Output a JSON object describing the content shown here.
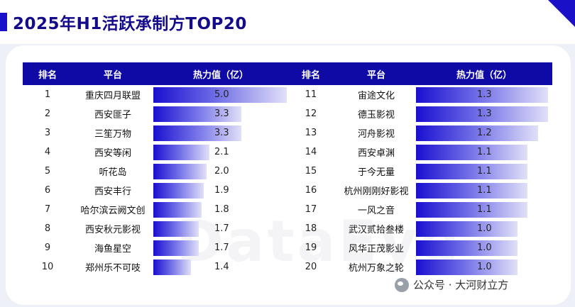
{
  "title": "2025年H1活跃承制方TOP20",
  "watermark_text": "公众号 · 大河财立方",
  "background_watermark": "DataEye",
  "colors": {
    "header_bg": "#0f0aa6",
    "bar_start": "#1a0fd0",
    "bar_end": "#e0e0f8",
    "title": "#140a8c"
  },
  "headers": {
    "rank": "排名",
    "platform": "平台",
    "heat": "热力值（亿）"
  },
  "max_value": 5.0,
  "left_rows": [
    {
      "rank": "1",
      "platform": "重庆四月联盟",
      "value": "5.0"
    },
    {
      "rank": "2",
      "platform": "西安匪子",
      "value": "3.3"
    },
    {
      "rank": "3",
      "platform": "三笙万物",
      "value": "3.3"
    },
    {
      "rank": "4",
      "platform": "西安等闲",
      "value": "2.1"
    },
    {
      "rank": "5",
      "platform": "听花岛",
      "value": "2.0"
    },
    {
      "rank": "6",
      "platform": "西安丰行",
      "value": "1.9"
    },
    {
      "rank": "7",
      "platform": "哈尔滨云阙文创",
      "value": "1.8"
    },
    {
      "rank": "8",
      "platform": "西安秋元影视",
      "value": "1.7"
    },
    {
      "rank": "9",
      "platform": "海鱼星空",
      "value": "1.7"
    },
    {
      "rank": "10",
      "platform": "郑州乐不可吱",
      "value": "1.4"
    }
  ],
  "right_rows": [
    {
      "rank": "11",
      "platform": "宙途文化",
      "value": "1.3"
    },
    {
      "rank": "12",
      "platform": "德玉影视",
      "value": "1.3"
    },
    {
      "rank": "13",
      "platform": "河舟影视",
      "value": "1.2"
    },
    {
      "rank": "14",
      "platform": "西安卓渊",
      "value": "1.1"
    },
    {
      "rank": "15",
      "platform": "于今无量",
      "value": "1.1"
    },
    {
      "rank": "16",
      "platform": "杭州刚刚好影视",
      "value": "1.1"
    },
    {
      "rank": "17",
      "platform": "一风之音",
      "value": "1.1"
    },
    {
      "rank": "18",
      "platform": "武汉贰拾叁楼",
      "value": "1.0"
    },
    {
      "rank": "19",
      "platform": "风华正茂影业",
      "value": "1.0"
    },
    {
      "rank": "20",
      "platform": "杭州万象之轮",
      "value": "1.0"
    }
  ]
}
